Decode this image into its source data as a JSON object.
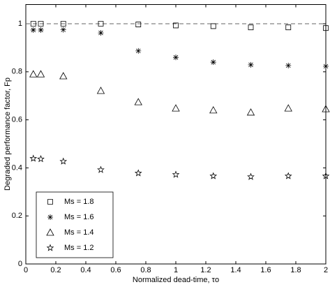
{
  "chart_data": {
    "type": "scatter",
    "xlabel": "Normalized dead-time, τo",
    "ylabel": "Degraded performance factor, Fp",
    "x": [
      0.05,
      0.1,
      0.25,
      0.5,
      0.75,
      1,
      1.25,
      1.5,
      1.75,
      2
    ],
    "series": [
      {
        "name": "Ms = 1.8",
        "marker": "square",
        "color": "#000000",
        "values": [
          1.0,
          1.0,
          1.0,
          1.0,
          0.997,
          0.993,
          0.99,
          0.985,
          0.985,
          0.982
        ]
      },
      {
        "name": "Ms = 1.6",
        "marker": "asterisk",
        "color": "#000000",
        "values": [
          0.974,
          0.974,
          0.975,
          0.962,
          0.887,
          0.86,
          0.84,
          0.829,
          0.826,
          0.823
        ]
      },
      {
        "name": "Ms = 1.4",
        "marker": "triangle",
        "color": "#000000",
        "values": [
          0.79,
          0.79,
          0.782,
          0.721,
          0.674,
          0.648,
          0.64,
          0.631,
          0.648,
          0.645
        ]
      },
      {
        "name": "Ms = 1.2",
        "marker": "star",
        "color": "#000000",
        "values": [
          0.439,
          0.437,
          0.427,
          0.392,
          0.378,
          0.372,
          0.366,
          0.363,
          0.366,
          0.366
        ]
      }
    ],
    "reference_line": 1,
    "xlim": [
      0,
      2
    ],
    "xticks": [
      0,
      0.2,
      0.4,
      0.6,
      0.8,
      1,
      1.2,
      1.4,
      1.6,
      1.8,
      2
    ],
    "ylim": [
      0,
      1.08
    ],
    "yticks": [
      0,
      0.2,
      0.4,
      0.6,
      0.8,
      1
    ],
    "legend": "lower-left"
  }
}
